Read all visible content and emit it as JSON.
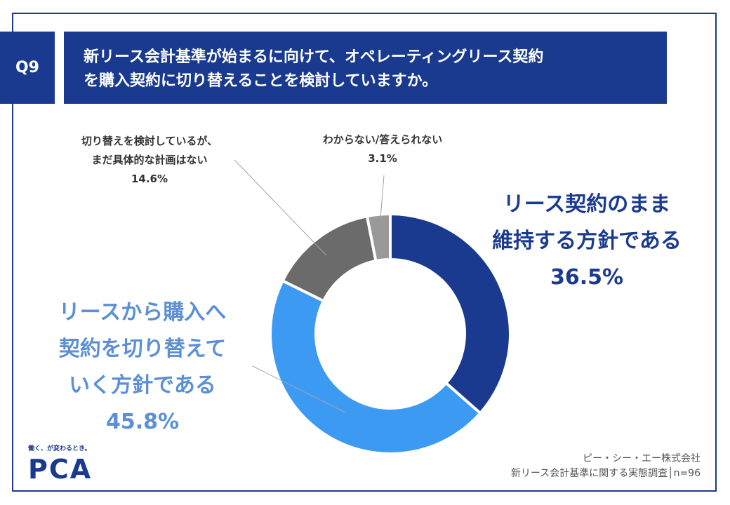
{
  "badge": "Q9",
  "title": {
    "line1": "新リース会計基準が始まるに向けて、オペレーティングリース契約",
    "line2": "を購入契約に切り替えることを検討していますか。"
  },
  "chart_data": {
    "type": "pie",
    "style": "donut",
    "start": "12 o'clock, clockwise",
    "series": [
      {
        "name": "リース契約のまま維持する方針である",
        "value": 36.5,
        "color": "#1a3a8f"
      },
      {
        "name": "リースから購入へ契約を切り替えていく方針である",
        "value": 45.8,
        "color": "#3d9af2"
      },
      {
        "name": "切り替えを検討しているが、まだ具体的な計画はない",
        "value": 14.6,
        "color": "#6b6b6b"
      },
      {
        "name": "わからない/答えられない",
        "value": 3.1,
        "color": "#999999"
      }
    ]
  },
  "labels": {
    "maintain": {
      "line1": "リース契約のまま",
      "line2": "維持する方針である",
      "pct": "36.5%"
    },
    "switch": {
      "line1": "リースから購入へ",
      "line2": "契約を切り替えて",
      "line3": "いく方針である",
      "pct": "45.8%"
    },
    "considering": {
      "line1": "切り替えを検討しているが、",
      "line2": "まだ具体的な計画はない",
      "pct": "14.6%"
    },
    "unknown": {
      "line1": "わからない/答えられない",
      "pct": "3.1%"
    }
  },
  "source": {
    "line1": "ピー・シー・エー株式会社",
    "line2": "新リース会計基準に関する実態調査│n=96"
  },
  "logo": {
    "tagline": "働く、が変わるとき。",
    "name": "PCA"
  }
}
